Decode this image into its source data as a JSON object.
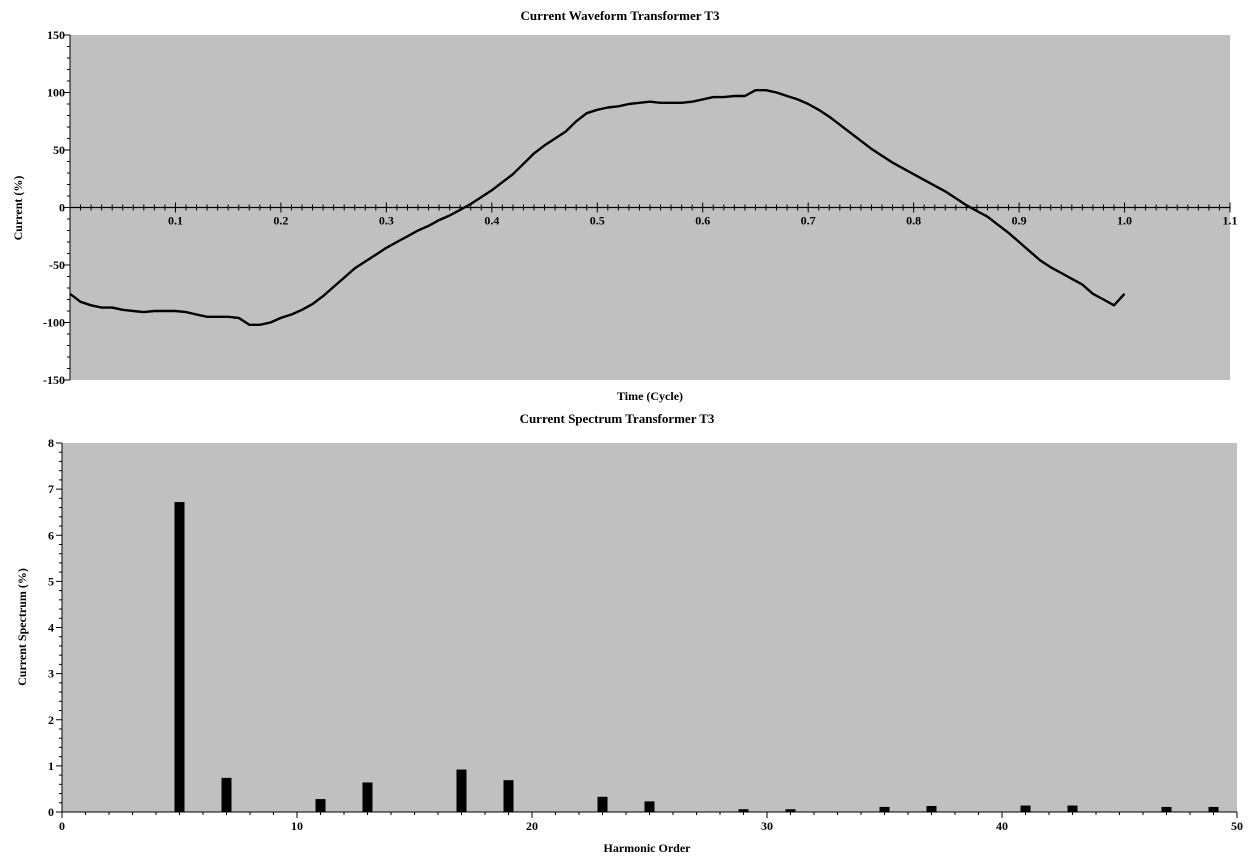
{
  "chart_data": [
    {
      "type": "line",
      "title": "Current Waveform Transformer T3",
      "xlabel": "Time (Cycle)",
      "ylabel": "Current (%)",
      "xlim": [
        0,
        1.1
      ],
      "ylim": [
        -150,
        150
      ],
      "x_tick_labels": [
        "0.1",
        "0.2",
        "0.3",
        "0.4",
        "0.5",
        "0.6",
        "0.7",
        "0.8",
        "0.9",
        "1.0",
        "1.1"
      ],
      "y_tick_labels": [
        "150",
        "100",
        "50",
        "0",
        "-50",
        "-100",
        "-150"
      ],
      "grid": false,
      "series": [
        {
          "color": "#000000",
          "x": [
            0.0,
            0.01,
            0.02,
            0.03,
            0.04,
            0.05,
            0.06,
            0.07,
            0.08,
            0.09,
            0.1,
            0.11,
            0.12,
            0.13,
            0.14,
            0.15,
            0.16,
            0.17,
            0.18,
            0.19,
            0.2,
            0.21,
            0.22,
            0.23,
            0.24,
            0.25,
            0.26,
            0.27,
            0.28,
            0.29,
            0.3,
            0.31,
            0.32,
            0.33,
            0.34,
            0.35,
            0.36,
            0.37,
            0.38,
            0.39,
            0.4,
            0.41,
            0.42,
            0.43,
            0.44,
            0.45,
            0.46,
            0.47,
            0.48,
            0.49,
            0.5,
            0.51,
            0.52,
            0.53,
            0.54,
            0.55,
            0.56,
            0.57,
            0.58,
            0.59,
            0.6,
            0.61,
            0.62,
            0.63,
            0.64,
            0.65,
            0.66,
            0.67,
            0.68,
            0.69,
            0.7,
            0.71,
            0.72,
            0.73,
            0.74,
            0.75,
            0.76,
            0.77,
            0.78,
            0.79,
            0.8,
            0.81,
            0.82,
            0.83,
            0.84,
            0.85,
            0.86,
            0.87,
            0.88,
            0.89,
            0.9,
            0.91,
            0.92,
            0.93,
            0.94,
            0.95,
            0.96,
            0.97,
            0.98,
            0.99,
            1.0
          ],
          "y": [
            -75,
            -82,
            -85,
            -87,
            -87,
            -89,
            -90,
            -91,
            -90,
            -90,
            -90,
            -91,
            -93,
            -95,
            -95,
            -95,
            -96,
            -102,
            -102,
            -100,
            -96,
            -93,
            -89,
            -84,
            -77,
            -69,
            -61,
            -53,
            -47,
            -41,
            -35,
            -30,
            -25,
            -20,
            -16,
            -11,
            -7,
            -2,
            3,
            9,
            15,
            22,
            29,
            38,
            47,
            54,
            60,
            66,
            75,
            82,
            85,
            87,
            88,
            90,
            91,
            92,
            91,
            91,
            91,
            92,
            94,
            96,
            96,
            97,
            97,
            102,
            102,
            100,
            97,
            94,
            90,
            85,
            79,
            72,
            65,
            58,
            51,
            45,
            39,
            34,
            29,
            24,
            19,
            14,
            8,
            2,
            -3,
            -8,
            -15,
            -22,
            -30,
            -38,
            -46,
            -52,
            -57,
            -62,
            -67,
            -75,
            -80,
            -85,
            -75
          ]
        }
      ]
    },
    {
      "type": "bar",
      "title": "Current Spectrum Transformer T3",
      "xlabel": "Harmonic Order",
      "ylabel": "Current Spectrum (%)",
      "xlim": [
        0,
        50
      ],
      "ylim": [
        0,
        8
      ],
      "x_tick_labels": [
        "0",
        "10",
        "20",
        "30",
        "40",
        "50"
      ],
      "y_tick_labels": [
        "8",
        "7",
        "6",
        "5",
        "4",
        "3",
        "2",
        "1",
        "0"
      ],
      "grid": false,
      "color": "#000000",
      "categories": [
        5,
        7,
        11,
        13,
        17,
        19,
        23,
        25,
        29,
        31,
        35,
        37,
        41,
        43,
        47,
        49
      ],
      "values": [
        6.72,
        0.74,
        0.28,
        0.64,
        0.92,
        0.69,
        0.33,
        0.23,
        0.06,
        0.06,
        0.11,
        0.13,
        0.14,
        0.14,
        0.11,
        0.11
      ]
    }
  ]
}
